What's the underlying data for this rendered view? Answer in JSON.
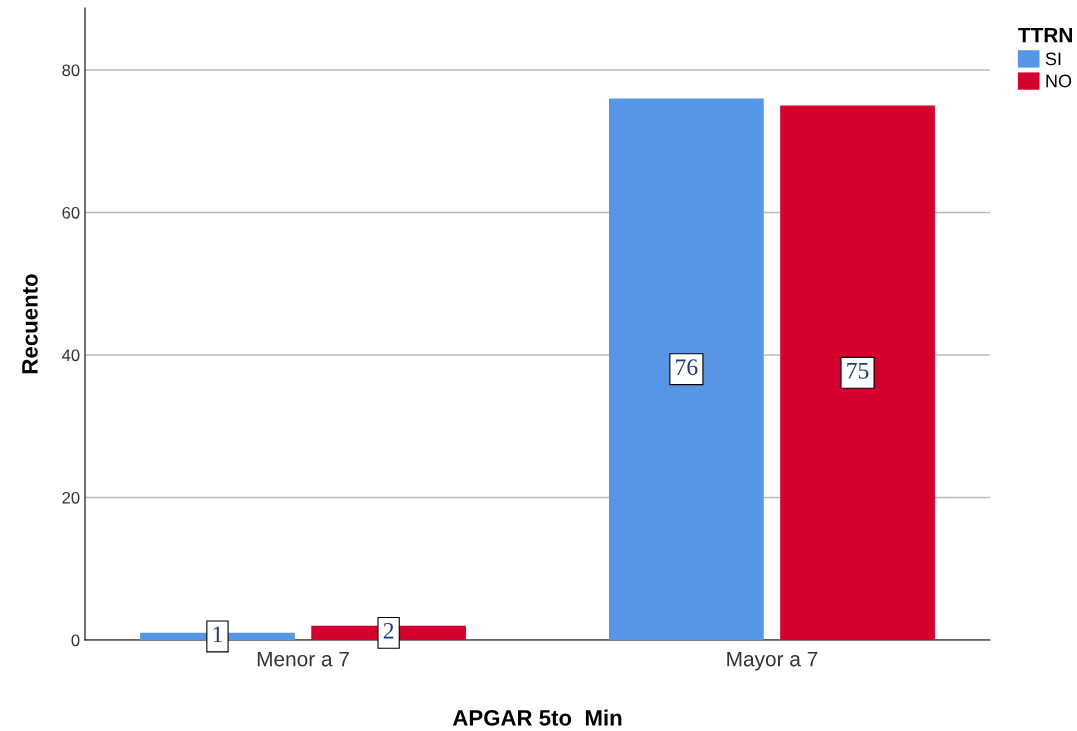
{
  "chart_data": {
    "type": "bar",
    "xlabel": "APGAR 5to  Min",
    "ylabel": "Recuento",
    "legend_title": "TTRN",
    "categories": [
      "Menor a 7",
      "Mayor a 7"
    ],
    "series": [
      {
        "name": "SI",
        "color": "#5596e6",
        "values": [
          1,
          76
        ]
      },
      {
        "name": "NO",
        "color": "#d5002f",
        "values": [
          2,
          75
        ]
      }
    ],
    "ylim": [
      0,
      88.7
    ],
    "yticks": [
      0,
      20,
      40,
      60,
      80
    ],
    "grid": "y",
    "legend": "top right",
    "data_labels": true
  }
}
